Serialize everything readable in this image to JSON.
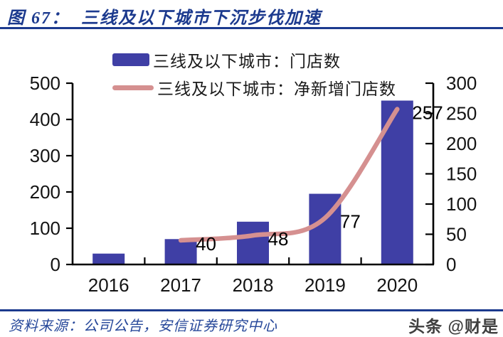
{
  "header": {
    "figure_label": "图 67：",
    "title": "三线及以下城市下沉步伐加速"
  },
  "legend": [
    {
      "label": "三线及以下城市：门店数",
      "type": "bar",
      "color": "#3f3fa5"
    },
    {
      "label": "三线及以下城市：净新增门店数",
      "type": "line",
      "color": "#d59090"
    }
  ],
  "chart_data": {
    "type": "bar",
    "subtype": "combo-bar-line",
    "categories": [
      "2016",
      "2017",
      "2018",
      "2019",
      "2020"
    ],
    "series": [
      {
        "name": "三线及以下城市：门店数",
        "type": "bar",
        "axis": "left",
        "color": "#3f3fa5",
        "values": [
          30,
          70,
          118,
          195,
          452
        ]
      },
      {
        "name": "三线及以下城市：净新增门店数",
        "type": "line",
        "axis": "right",
        "color": "#d59090",
        "values": [
          null,
          40,
          48,
          77,
          257
        ]
      }
    ],
    "left_axis": {
      "min": 0,
      "max": 500,
      "ticks": [
        0,
        100,
        200,
        300,
        400,
        500
      ]
    },
    "right_axis": {
      "min": 0,
      "max": 300,
      "ticks": [
        0,
        50,
        100,
        150,
        200,
        250,
        300
      ]
    },
    "grid": false,
    "legend_position": "top",
    "title": "三线及以下城市下沉步伐加速",
    "xlabel": "",
    "ylabel_left": "",
    "ylabel_right": ""
  },
  "footer": {
    "source": "资料来源：公司公告，安信证券研究中心",
    "watermark": "头条 @财是"
  },
  "colors": {
    "accent": "#1c3a8e",
    "bar": "#3f3fa5",
    "line": "#d59090",
    "axis": "#000000",
    "source_text": "#27489a",
    "watermark": "#3f3f3f"
  }
}
